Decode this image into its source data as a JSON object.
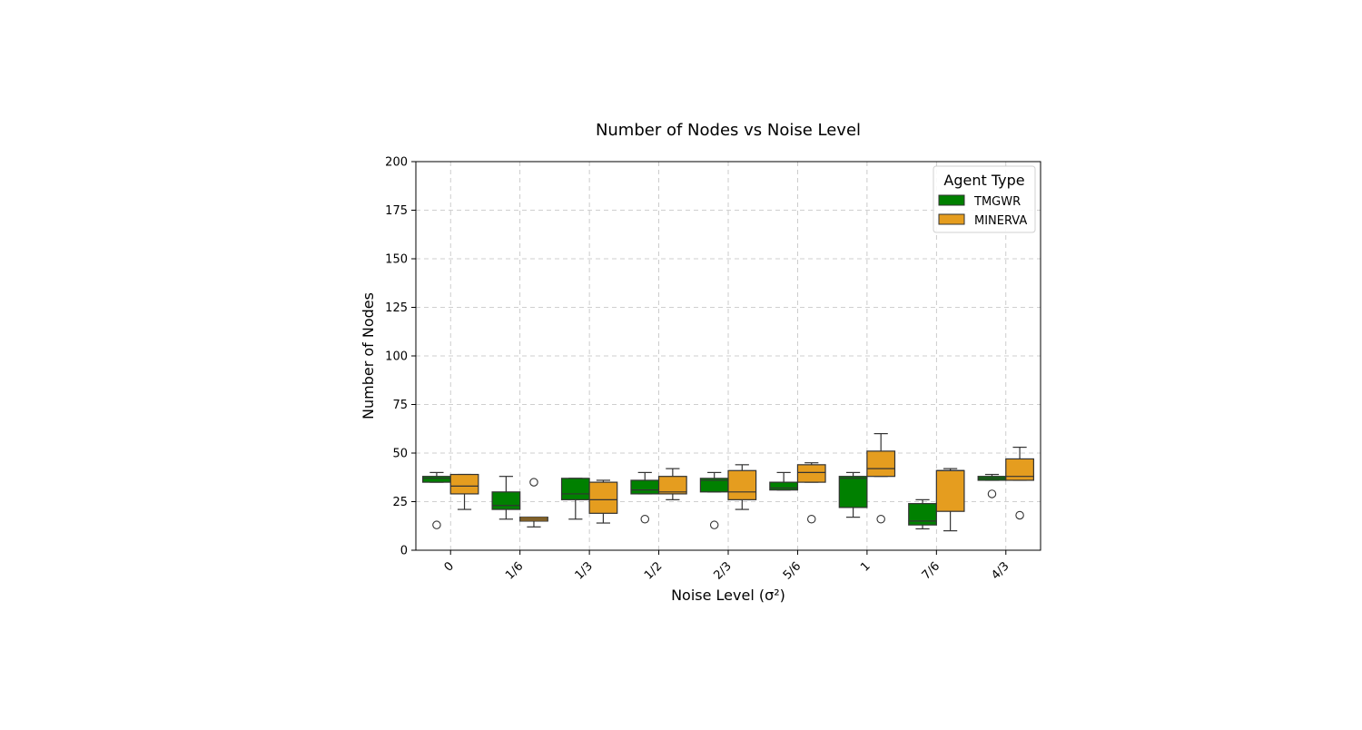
{
  "chart_data": {
    "type": "box",
    "title": "Number of Nodes vs Noise Level",
    "xlabel": "Noise Level (σ²)",
    "ylabel": "Number of Nodes",
    "ylim": [
      0,
      200
    ],
    "yticks": [
      0,
      25,
      50,
      75,
      100,
      125,
      150,
      175,
      200
    ],
    "categories": [
      "0",
      "1/6",
      "1/3",
      "1/2",
      "2/3",
      "5/6",
      "1",
      "7/6",
      "4/3"
    ],
    "grid": true,
    "legend": {
      "title": "Agent Type",
      "position": "top-right"
    },
    "series": [
      {
        "name": "TMGWR",
        "color": "#008000",
        "boxes": [
          {
            "whisker_low": 35,
            "q1": 35,
            "median": 37,
            "q3": 38,
            "whisker_high": 40,
            "outliers": [
              13
            ]
          },
          {
            "whisker_low": 16,
            "q1": 21,
            "median": 23,
            "q3": 30,
            "whisker_high": 38,
            "outliers": []
          },
          {
            "whisker_low": 16,
            "q1": 26,
            "median": 29,
            "q3": 37,
            "whisker_high": 37,
            "outliers": []
          },
          {
            "whisker_low": 29,
            "q1": 29,
            "median": 31,
            "q3": 36,
            "whisker_high": 40,
            "outliers": [
              16
            ]
          },
          {
            "whisker_low": 30,
            "q1": 30,
            "median": 36,
            "q3": 37,
            "whisker_high": 40,
            "outliers": [
              13
            ]
          },
          {
            "whisker_low": 31,
            "q1": 31,
            "median": 32,
            "q3": 35,
            "whisker_high": 40,
            "outliers": []
          },
          {
            "whisker_low": 17,
            "q1": 22,
            "median": 37,
            "q3": 38,
            "whisker_high": 40,
            "outliers": []
          },
          {
            "whisker_low": 11,
            "q1": 13,
            "median": 15,
            "q3": 24,
            "whisker_high": 26,
            "outliers": []
          },
          {
            "whisker_low": 36,
            "q1": 36,
            "median": 37,
            "q3": 38,
            "whisker_high": 39,
            "outliers": [
              29
            ]
          }
        ]
      },
      {
        "name": "MINERVA",
        "color": "#e59d1f",
        "boxes": [
          {
            "whisker_low": 21,
            "q1": 29,
            "median": 33,
            "q3": 39,
            "whisker_high": 39,
            "outliers": []
          },
          {
            "whisker_low": 12,
            "q1": 15,
            "median": 16,
            "q3": 17,
            "whisker_high": 17,
            "outliers": [
              35
            ]
          },
          {
            "whisker_low": 14,
            "q1": 19,
            "median": 26,
            "q3": 35,
            "whisker_high": 36,
            "outliers": []
          },
          {
            "whisker_low": 26,
            "q1": 29,
            "median": 30,
            "q3": 38,
            "whisker_high": 42,
            "outliers": []
          },
          {
            "whisker_low": 21,
            "q1": 26,
            "median": 30,
            "q3": 41,
            "whisker_high": 44,
            "outliers": []
          },
          {
            "whisker_low": 35,
            "q1": 35,
            "median": 40,
            "q3": 44,
            "whisker_high": 45,
            "outliers": [
              16
            ]
          },
          {
            "whisker_low": 38,
            "q1": 38,
            "median": 42,
            "q3": 51,
            "whisker_high": 60,
            "outliers": [
              16
            ]
          },
          {
            "whisker_low": 10,
            "q1": 20,
            "median": 41,
            "q3": 41,
            "whisker_high": 42,
            "outliers": []
          },
          {
            "whisker_low": 36,
            "q1": 36,
            "median": 38,
            "q3": 47,
            "whisker_high": 53,
            "outliers": [
              18
            ]
          }
        ]
      }
    ]
  }
}
